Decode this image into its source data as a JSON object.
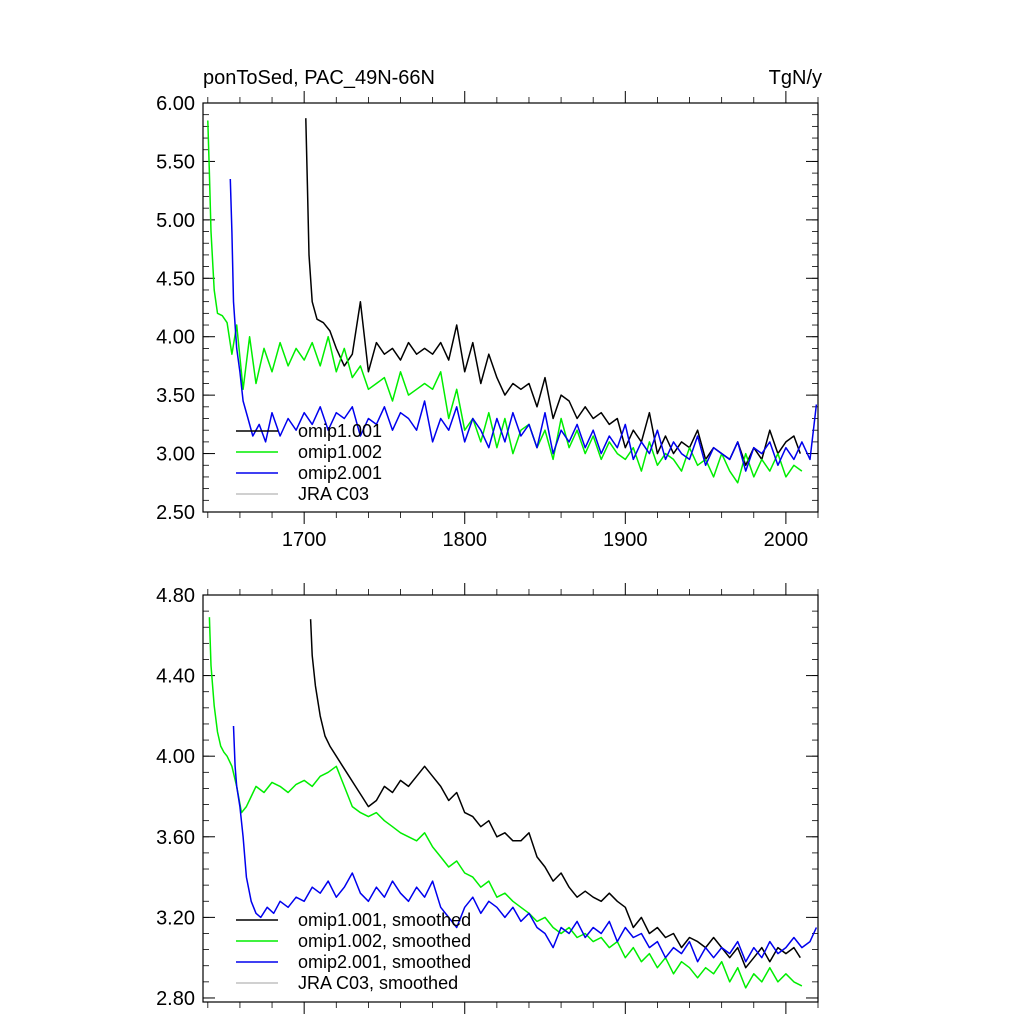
{
  "colors": {
    "omip1_001": "#000000",
    "omip1_002": "#00ee00",
    "omip2_001": "#0000ee",
    "jra": "#c0c0c0"
  },
  "chart_data": [
    {
      "type": "line",
      "title": "ponToSed, PAC_49N-66N",
      "units": "TgN/y",
      "xlim": [
        1637,
        2020
      ],
      "ylim": [
        2.5,
        6.0
      ],
      "x_ticks": [
        1700,
        1800,
        1900,
        2000
      ],
      "x_tick_labels": [
        "1700",
        "1800",
        "1900",
        "2000"
      ],
      "y_ticks": [
        2.5,
        3.0,
        3.5,
        4.0,
        4.5,
        5.0,
        5.5,
        6.0
      ],
      "y_tick_labels": [
        "2.50",
        "3.00",
        "3.50",
        "4.00",
        "4.50",
        "5.00",
        "5.50",
        "6.00"
      ],
      "legend": [
        "omip1.001",
        "omip1.002",
        "omip2.001",
        "JRA C03"
      ],
      "series": [
        {
          "name": "omip1.001",
          "color": "#000000",
          "x": [
            1701,
            1702,
            1703,
            1705,
            1708,
            1712,
            1716,
            1720,
            1725,
            1730,
            1735,
            1740,
            1745,
            1750,
            1755,
            1760,
            1765,
            1770,
            1775,
            1780,
            1785,
            1790,
            1795,
            1800,
            1805,
            1810,
            1815,
            1820,
            1825,
            1830,
            1835,
            1840,
            1845,
            1850,
            1855,
            1860,
            1865,
            1870,
            1875,
            1880,
            1885,
            1890,
            1895,
            1900,
            1905,
            1910,
            1915,
            1920,
            1925,
            1930,
            1935,
            1940,
            1945,
            1950,
            1955,
            1960,
            1965,
            1970,
            1975,
            1980,
            1985,
            1990,
            1995,
            2000,
            2005,
            2009
          ],
          "y": [
            5.87,
            5.3,
            4.7,
            4.3,
            4.15,
            4.12,
            4.05,
            3.9,
            3.75,
            3.85,
            4.3,
            3.7,
            3.95,
            3.85,
            3.9,
            3.8,
            3.95,
            3.85,
            3.9,
            3.85,
            3.95,
            3.8,
            4.1,
            3.7,
            3.95,
            3.6,
            3.85,
            3.65,
            3.5,
            3.6,
            3.55,
            3.6,
            3.4,
            3.65,
            3.3,
            3.5,
            3.45,
            3.3,
            3.4,
            3.3,
            3.35,
            3.25,
            3.3,
            3.05,
            3.2,
            3.1,
            3.35,
            3.0,
            3.15,
            3.0,
            3.1,
            3.05,
            3.2,
            2.95,
            3.05,
            3.0,
            2.95,
            3.1,
            2.9,
            3.05,
            2.95,
            3.2,
            3.0,
            3.1,
            3.15,
            3.0
          ]
        },
        {
          "name": "omip1.002",
          "color": "#00ee00",
          "x": [
            1640,
            1641,
            1642,
            1644,
            1646,
            1649,
            1652,
            1655,
            1658,
            1662,
            1666,
            1670,
            1675,
            1680,
            1685,
            1690,
            1695,
            1700,
            1705,
            1710,
            1715,
            1720,
            1725,
            1730,
            1735,
            1740,
            1745,
            1750,
            1755,
            1760,
            1765,
            1770,
            1775,
            1780,
            1785,
            1790,
            1795,
            1800,
            1805,
            1810,
            1815,
            1820,
            1825,
            1830,
            1835,
            1840,
            1845,
            1850,
            1855,
            1860,
            1865,
            1870,
            1875,
            1880,
            1885,
            1890,
            1895,
            1900,
            1905,
            1910,
            1915,
            1920,
            1925,
            1930,
            1935,
            1940,
            1945,
            1950,
            1955,
            1960,
            1965,
            1970,
            1975,
            1980,
            1985,
            1990,
            1995,
            2000,
            2005,
            2010
          ],
          "y": [
            5.85,
            5.4,
            4.9,
            4.4,
            4.2,
            4.18,
            4.12,
            3.85,
            4.1,
            3.55,
            4.0,
            3.6,
            3.9,
            3.7,
            3.95,
            3.75,
            3.9,
            3.8,
            3.95,
            3.75,
            4.0,
            3.7,
            3.9,
            3.65,
            3.75,
            3.55,
            3.6,
            3.65,
            3.45,
            3.7,
            3.5,
            3.55,
            3.6,
            3.55,
            3.7,
            3.3,
            3.55,
            3.2,
            3.3,
            3.1,
            3.35,
            3.05,
            3.3,
            3.0,
            3.2,
            3.25,
            3.05,
            3.2,
            2.95,
            3.3,
            3.05,
            3.2,
            3.0,
            3.15,
            2.95,
            3.1,
            3.0,
            2.95,
            3.05,
            2.85,
            3.1,
            2.9,
            3.0,
            2.95,
            2.85,
            3.05,
            2.9,
            2.95,
            2.8,
            3.0,
            2.85,
            2.75,
            3.0,
            2.8,
            2.95,
            2.85,
            3.0,
            2.8,
            2.9,
            2.85
          ]
        },
        {
          "name": "omip2.001",
          "color": "#0000ee",
          "x": [
            1654,
            1655,
            1656,
            1658,
            1660,
            1662,
            1665,
            1668,
            1672,
            1676,
            1680,
            1685,
            1690,
            1695,
            1700,
            1705,
            1710,
            1715,
            1720,
            1725,
            1730,
            1735,
            1740,
            1745,
            1750,
            1755,
            1760,
            1765,
            1770,
            1775,
            1780,
            1785,
            1790,
            1795,
            1800,
            1805,
            1810,
            1815,
            1820,
            1825,
            1830,
            1835,
            1840,
            1845,
            1850,
            1855,
            1860,
            1865,
            1870,
            1875,
            1880,
            1885,
            1890,
            1895,
            1900,
            1905,
            1910,
            1915,
            1920,
            1925,
            1930,
            1935,
            1940,
            1945,
            1950,
            1955,
            1960,
            1965,
            1970,
            1975,
            1980,
            1985,
            1990,
            1995,
            2000,
            2005,
            2010,
            2015,
            2019
          ],
          "y": [
            5.35,
            4.9,
            4.3,
            3.9,
            3.7,
            3.45,
            3.3,
            3.15,
            3.25,
            3.1,
            3.35,
            3.15,
            3.3,
            3.2,
            3.35,
            3.25,
            3.4,
            3.2,
            3.35,
            3.3,
            3.4,
            3.15,
            3.3,
            3.25,
            3.4,
            3.2,
            3.35,
            3.3,
            3.2,
            3.45,
            3.1,
            3.3,
            3.2,
            3.4,
            3.1,
            3.3,
            3.2,
            3.05,
            3.3,
            3.1,
            3.35,
            3.15,
            3.25,
            3.05,
            3.35,
            3.0,
            3.2,
            3.1,
            3.25,
            3.05,
            3.2,
            3.0,
            3.15,
            3.05,
            3.25,
            2.95,
            3.1,
            3.0,
            3.2,
            2.95,
            3.1,
            3.0,
            2.95,
            3.15,
            2.9,
            3.05,
            3.0,
            2.95,
            3.1,
            2.85,
            3.05,
            3.0,
            3.1,
            2.9,
            3.05,
            2.95,
            3.1,
            2.95,
            3.42
          ]
        },
        {
          "name": "JRA C03",
          "color": "#c0c0c0",
          "x": [],
          "y": []
        }
      ]
    },
    {
      "type": "line",
      "title": "",
      "xlim": [
        1637,
        2020
      ],
      "ylim": [
        2.78,
        4.8
      ],
      "x_ticks": [
        1700,
        1800,
        1900,
        2000
      ],
      "x_tick_labels": [
        "",
        "",
        "",
        ""
      ],
      "y_ticks": [
        2.8,
        3.2,
        3.6,
        4.0,
        4.4,
        4.8
      ],
      "y_tick_labels": [
        "2.80",
        "3.20",
        "3.60",
        "4.00",
        "4.40",
        "4.80"
      ],
      "legend": [
        "omip1.001, smoothed",
        "omip1.002, smoothed",
        "omip2.001, smoothed",
        "JRA C03, smoothed"
      ],
      "series": [
        {
          "name": "omip1.001, smoothed",
          "color": "#000000",
          "x": [
            1704,
            1705,
            1707,
            1710,
            1713,
            1716,
            1720,
            1724,
            1728,
            1732,
            1736,
            1740,
            1745,
            1750,
            1755,
            1760,
            1765,
            1770,
            1775,
            1780,
            1785,
            1790,
            1795,
            1800,
            1805,
            1810,
            1815,
            1820,
            1825,
            1830,
            1835,
            1840,
            1845,
            1850,
            1855,
            1860,
            1865,
            1870,
            1875,
            1880,
            1885,
            1890,
            1895,
            1900,
            1905,
            1910,
            1915,
            1920,
            1925,
            1930,
            1935,
            1940,
            1945,
            1950,
            1955,
            1960,
            1965,
            1970,
            1975,
            1980,
            1985,
            1990,
            1995,
            2000,
            2005,
            2009
          ],
          "y": [
            4.68,
            4.5,
            4.35,
            4.2,
            4.1,
            4.05,
            4.0,
            3.95,
            3.9,
            3.85,
            3.8,
            3.75,
            3.78,
            3.85,
            3.82,
            3.88,
            3.85,
            3.9,
            3.95,
            3.9,
            3.85,
            3.78,
            3.82,
            3.72,
            3.7,
            3.65,
            3.68,
            3.6,
            3.62,
            3.58,
            3.58,
            3.62,
            3.5,
            3.45,
            3.38,
            3.42,
            3.35,
            3.3,
            3.33,
            3.3,
            3.28,
            3.32,
            3.28,
            3.25,
            3.15,
            3.2,
            3.12,
            3.15,
            3.1,
            3.12,
            3.05,
            3.1,
            3.08,
            3.05,
            3.1,
            3.05,
            3.0,
            3.05,
            2.95,
            3.0,
            3.05,
            2.98,
            3.05,
            3.02,
            3.05,
            3.0
          ]
        },
        {
          "name": "omip1.002, smoothed",
          "color": "#00ee00",
          "x": [
            1641,
            1642,
            1644,
            1646,
            1648,
            1650,
            1652,
            1655,
            1658,
            1661,
            1664,
            1667,
            1670,
            1675,
            1680,
            1685,
            1690,
            1695,
            1700,
            1705,
            1710,
            1715,
            1720,
            1725,
            1730,
            1735,
            1740,
            1745,
            1750,
            1755,
            1760,
            1765,
            1770,
            1775,
            1780,
            1785,
            1790,
            1795,
            1800,
            1805,
            1810,
            1815,
            1820,
            1825,
            1830,
            1835,
            1840,
            1845,
            1850,
            1855,
            1860,
            1865,
            1870,
            1875,
            1880,
            1885,
            1890,
            1895,
            1900,
            1905,
            1910,
            1915,
            1920,
            1925,
            1930,
            1935,
            1940,
            1945,
            1950,
            1955,
            1960,
            1965,
            1970,
            1975,
            1980,
            1985,
            1990,
            1995,
            2000,
            2005,
            2010
          ],
          "y": [
            4.69,
            4.45,
            4.25,
            4.12,
            4.05,
            4.02,
            4.0,
            3.95,
            3.85,
            3.72,
            3.75,
            3.8,
            3.85,
            3.82,
            3.87,
            3.85,
            3.82,
            3.86,
            3.88,
            3.85,
            3.9,
            3.92,
            3.95,
            3.85,
            3.75,
            3.72,
            3.7,
            3.72,
            3.68,
            3.65,
            3.62,
            3.6,
            3.58,
            3.62,
            3.55,
            3.5,
            3.45,
            3.48,
            3.42,
            3.4,
            3.35,
            3.38,
            3.3,
            3.32,
            3.28,
            3.25,
            3.22,
            3.18,
            3.2,
            3.15,
            3.12,
            3.15,
            3.1,
            3.12,
            3.08,
            3.1,
            3.05,
            3.08,
            3.0,
            3.05,
            2.98,
            3.02,
            2.95,
            3.0,
            2.92,
            2.98,
            2.95,
            2.9,
            2.95,
            2.92,
            2.98,
            2.88,
            2.95,
            2.85,
            2.92,
            2.88,
            2.95,
            2.88,
            2.92,
            2.88,
            2.86
          ]
        },
        {
          "name": "omip2.001, smoothed",
          "color": "#0000ee",
          "x": [
            1656,
            1657,
            1658,
            1660,
            1662,
            1664,
            1667,
            1670,
            1673,
            1677,
            1681,
            1685,
            1690,
            1695,
            1700,
            1705,
            1710,
            1715,
            1720,
            1725,
            1730,
            1735,
            1740,
            1745,
            1750,
            1755,
            1760,
            1765,
            1770,
            1775,
            1780,
            1785,
            1790,
            1795,
            1800,
            1805,
            1810,
            1815,
            1820,
            1825,
            1830,
            1835,
            1840,
            1845,
            1850,
            1855,
            1860,
            1865,
            1870,
            1875,
            1880,
            1885,
            1890,
            1895,
            1900,
            1905,
            1910,
            1915,
            1920,
            1925,
            1930,
            1935,
            1940,
            1945,
            1950,
            1955,
            1960,
            1965,
            1970,
            1975,
            1980,
            1985,
            1990,
            1995,
            2000,
            2005,
            2010,
            2015,
            2019
          ],
          "y": [
            4.15,
            3.95,
            3.85,
            3.75,
            3.6,
            3.4,
            3.28,
            3.22,
            3.2,
            3.25,
            3.22,
            3.28,
            3.25,
            3.3,
            3.28,
            3.35,
            3.32,
            3.38,
            3.3,
            3.35,
            3.42,
            3.32,
            3.28,
            3.35,
            3.3,
            3.38,
            3.32,
            3.28,
            3.35,
            3.3,
            3.38,
            3.25,
            3.2,
            3.15,
            3.25,
            3.3,
            3.22,
            3.28,
            3.25,
            3.2,
            3.25,
            3.18,
            3.22,
            3.15,
            3.12,
            3.05,
            3.15,
            3.12,
            3.18,
            3.1,
            3.15,
            3.12,
            3.18,
            3.08,
            3.15,
            3.1,
            3.12,
            3.05,
            3.08,
            3.0,
            3.05,
            3.02,
            3.08,
            2.98,
            3.05,
            3.0,
            3.05,
            3.02,
            3.08,
            2.98,
            3.05,
            3.0,
            3.08,
            3.02,
            3.05,
            3.1,
            3.05,
            3.08,
            3.15
          ]
        },
        {
          "name": "JRA C03, smoothed",
          "color": "#c0c0c0",
          "x": [],
          "y": []
        }
      ]
    }
  ]
}
